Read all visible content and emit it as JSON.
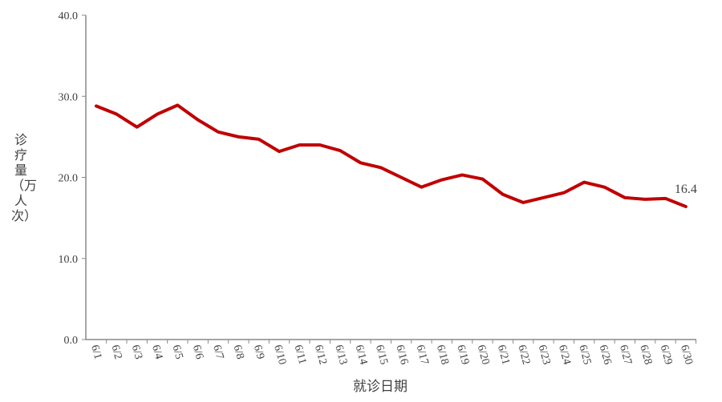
{
  "chart_data": {
    "type": "line",
    "title": "",
    "xlabel": "就诊日期",
    "ylabel": "诊疗量（万人次）",
    "ylim": [
      0,
      40
    ],
    "yticks": [
      "0.0",
      "10.0",
      "20.0",
      "30.0",
      "40.0"
    ],
    "grid": false,
    "categories": [
      "6/1",
      "6/2",
      "6/3",
      "6/4",
      "6/5",
      "6/6",
      "6/7",
      "6/8",
      "6/9",
      "6/10",
      "6/11",
      "6/12",
      "6/13",
      "6/14",
      "6/15",
      "6/16",
      "6/17",
      "6/18",
      "6/19",
      "6/20",
      "6/21",
      "6/22",
      "6/23",
      "6/24",
      "6/25",
      "6/26",
      "6/27",
      "6/28",
      "6/29",
      "6/30"
    ],
    "series": [
      {
        "values": [
          28.8,
          27.8,
          26.2,
          27.8,
          28.9,
          27.1,
          25.6,
          25.0,
          24.7,
          23.2,
          24.0,
          24.0,
          23.3,
          21.8,
          21.2,
          20.0,
          18.8,
          19.7,
          20.3,
          19.8,
          17.9,
          16.9,
          17.5,
          18.1,
          19.4,
          18.8,
          17.5,
          17.3,
          17.4,
          16.4
        ],
        "color": "#C00000"
      }
    ],
    "annotations": [
      {
        "category": "6/30",
        "label": "16.4"
      }
    ]
  }
}
